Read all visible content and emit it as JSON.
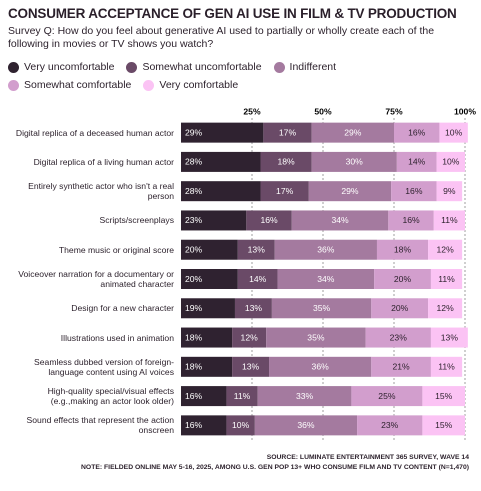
{
  "chart_data": {
    "type": "stacked-bar-horizontal",
    "title": "CONSUMER ACCEPTANCE OF GEN AI USE IN FILM & TV PRODUCTION",
    "subtitle": "Survey Q: How do you feel about generative AI used to partially or wholly create each of the following in movies or TV shows you watch?",
    "categories": [
      "Digital replica of a deceased human actor",
      "Digital replica of a living human actor",
      "Entirely synthetic actor who isn't a real person",
      "Scripts/screenplays",
      "Theme music or original score",
      "Voiceover narration for a documentary or animated character",
      "Design for a new character",
      "Illustrations used in animation",
      "Seamless dubbed version of foreign-language content using AI voices",
      "High-quality special/visual effects (e.g.,making an actor look older)",
      "Sound effects that represent the action onscreen"
    ],
    "series": [
      {
        "name": "Very uncomfortable",
        "color": "#2f2230",
        "values": [
          29,
          28,
          28,
          23,
          20,
          20,
          19,
          18,
          18,
          16,
          16
        ],
        "value_labels": [
          "29%",
          "28%",
          "28%",
          "23%",
          "20%",
          "20%",
          "19%",
          "18%",
          "18%",
          "16%",
          "16%"
        ]
      },
      {
        "name": "Somewhat uncomfortable",
        "color": "#6a4a67",
        "values": [
          17,
          18,
          17,
          16,
          13,
          14,
          13,
          12,
          13,
          11,
          10
        ],
        "value_labels": [
          "17%",
          "18%",
          "17%",
          "16%",
          "13%",
          "14%",
          "13%",
          "12%",
          "13%",
          "11%",
          "10%"
        ]
      },
      {
        "name": "Indifferent",
        "color": "#a47a9f",
        "values": [
          29,
          30,
          29,
          34,
          36,
          34,
          35,
          35,
          36,
          33,
          36
        ],
        "value_labels": [
          "29%",
          "30%",
          "29%",
          "34%",
          "36%",
          "34%",
          "35%",
          "35%",
          "36%",
          "33%",
          "36%"
        ]
      },
      {
        "name": "Somewhat comfortable",
        "color": "#d29ecd",
        "values": [
          16,
          14,
          16,
          16,
          18,
          20,
          20,
          23,
          21,
          25,
          23
        ],
        "value_labels": [
          "16%",
          "14%",
          "16%",
          "16%",
          "18%",
          "20%",
          "20%",
          "23%",
          "21%",
          "25%",
          "23%"
        ]
      },
      {
        "name": "Very comfortable",
        "color": "#fbc3f4",
        "values": [
          10,
          10,
          9,
          11,
          12,
          11,
          12,
          13,
          11,
          15,
          15
        ],
        "value_labels": [
          "10%",
          "10%",
          "9%",
          "11%",
          "12%",
          "11%",
          "12%",
          "13%",
          "11%",
          "15%",
          "15%"
        ]
      }
    ],
    "xlim": [
      0,
      100
    ],
    "xticks": [
      {
        "value": 25,
        "label": "25%"
      },
      {
        "value": 50,
        "label": "50%"
      },
      {
        "value": 75,
        "label": "75%"
      },
      {
        "value": 100,
        "label": "100%"
      }
    ],
    "grid": true,
    "source": "SOURCE: LUMINATE ENTERTAINMENT 365 SURVEY, WAVE 14",
    "note": "NOTE: FIELDED ONLINE MAY 5-16, 2025, AMONG U.S. GEN POP 13+ WHO CONSUME FILM AND TV CONTENT (N=1,470)"
  }
}
